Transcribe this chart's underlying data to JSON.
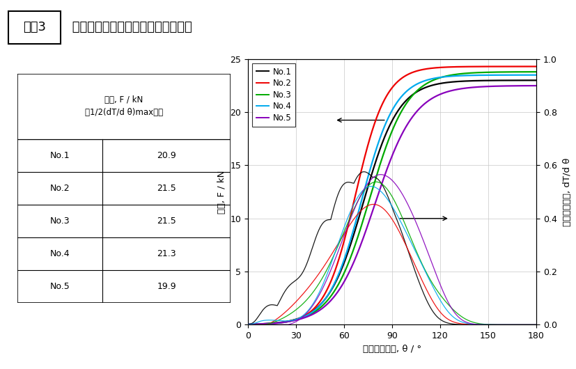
{
  "title_box": "事例3",
  "title_rest": " 軸力管理方法の違い　トルク勾配法",
  "xlabel": "締付け回転角, θ / °",
  "ylabel_left": "軸力, F / kN",
  "ylabel_right": "トルクこう配, dT/d θ",
  "xlim": [
    0,
    180
  ],
  "ylim_left": [
    0,
    25
  ],
  "ylim_right": [
    0,
    1
  ],
  "xticks": [
    0,
    30,
    60,
    90,
    120,
    150,
    180
  ],
  "yticks_left": [
    0,
    5,
    10,
    15,
    20,
    25
  ],
  "yticks_right": [
    0,
    0.2,
    0.4,
    0.6,
    0.8,
    1.0
  ],
  "series_colors": [
    "#000000",
    "#ee0000",
    "#00aa00",
    "#00aaee",
    "#8800bb"
  ],
  "series_labels": [
    "No.1",
    "No.2",
    "No.3",
    "No.4",
    "No.5"
  ],
  "table_header1": "軸力, F / kN",
  "table_header2": "（1/2(dT/d θ)max時）",
  "table_rows": [
    [
      "No.1",
      "20.9"
    ],
    [
      "No.2",
      "21.5"
    ],
    [
      "No.3",
      "21.5"
    ],
    [
      "No.4",
      "21.3"
    ],
    [
      "No.5",
      "19.9"
    ]
  ],
  "background_color": "#ffffff",
  "fig_width": 8.28,
  "fig_height": 5.3,
  "dpi": 100
}
